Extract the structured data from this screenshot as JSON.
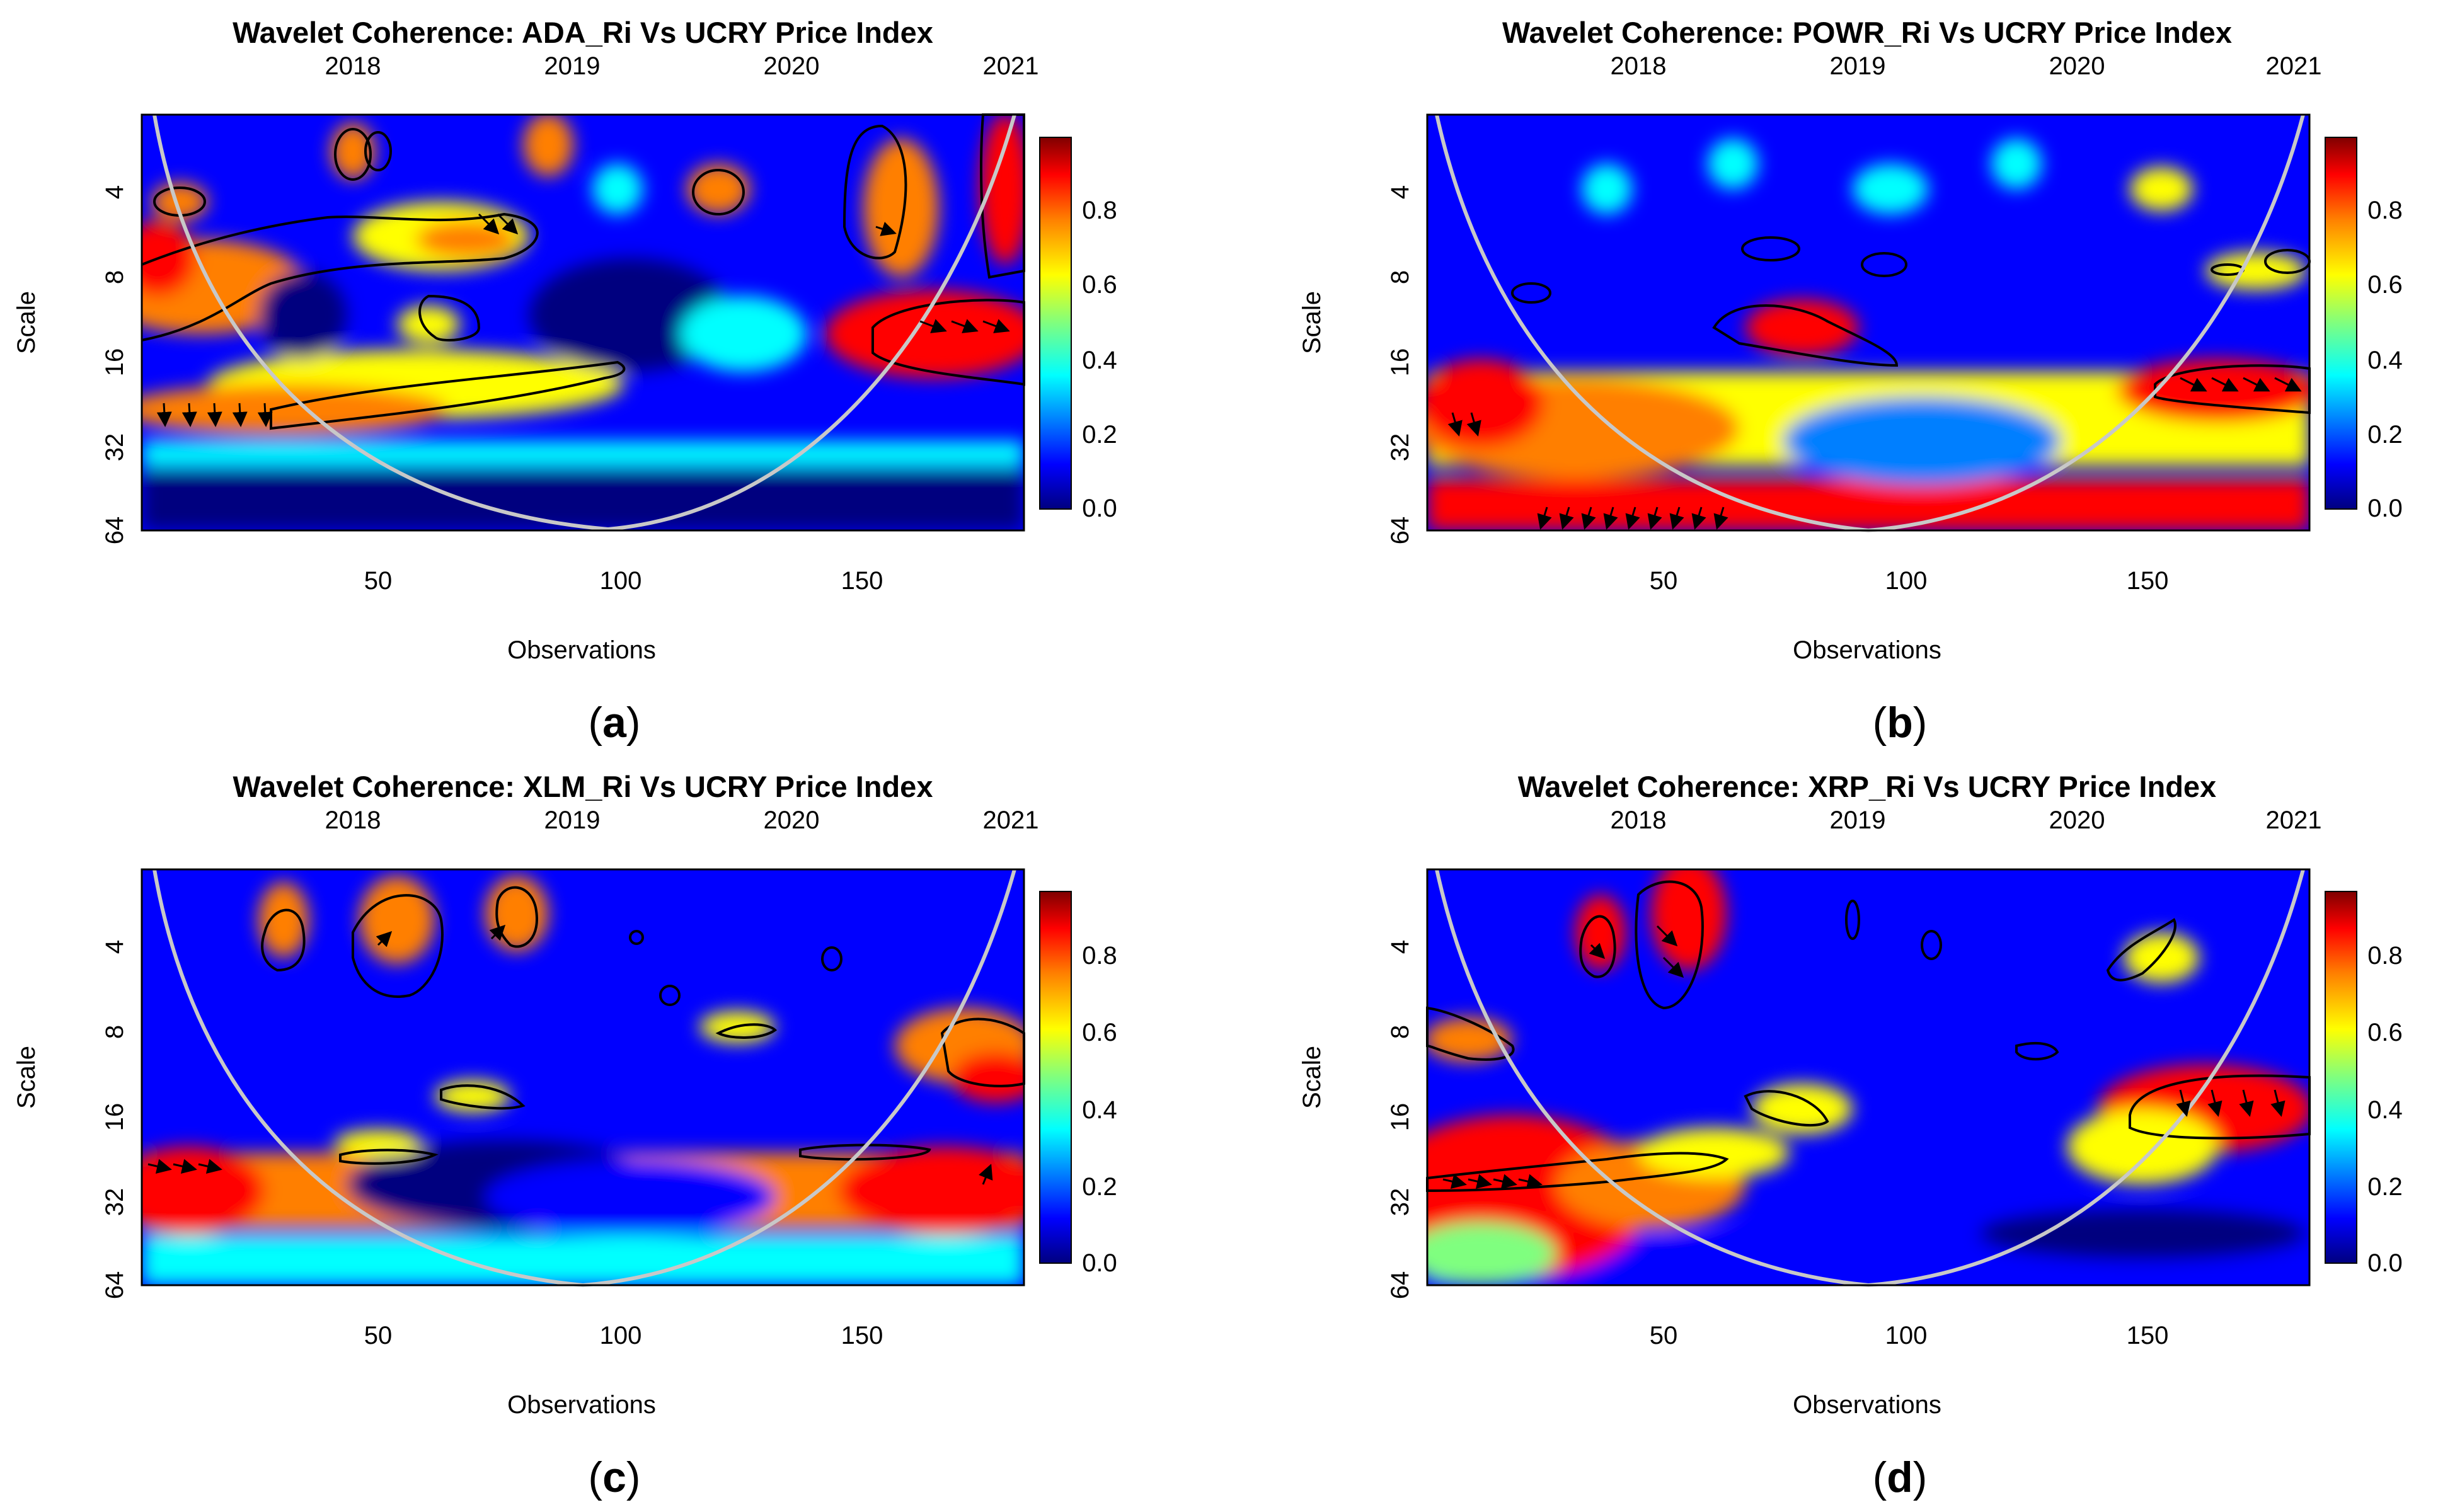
{
  "figure": {
    "panels": [
      {
        "title": "Wavelet Coherence: ADA_Ri Vs UCRY Price Index",
        "caption_letter": "a",
        "xlabel": "Observations",
        "ylabel": "Scale",
        "top_ticks": [
          "2018",
          "2019",
          "2020",
          "2021"
        ],
        "x_ticks": [
          "50",
          "100",
          "150"
        ],
        "y_ticks": [
          "4",
          "8",
          "16",
          "32",
          "64"
        ],
        "colorbar_ticks": [
          "0.0",
          "0.2",
          "0.4",
          "0.6",
          "0.8"
        ]
      },
      {
        "title": "Wavelet Coherence: POWR_Ri Vs UCRY Price Index",
        "caption_letter": "b",
        "xlabel": "Observations",
        "ylabel": "Scale",
        "top_ticks": [
          "2018",
          "2019",
          "2020",
          "2021"
        ],
        "x_ticks": [
          "50",
          "100",
          "150"
        ],
        "y_ticks": [
          "4",
          "8",
          "16",
          "32",
          "64"
        ],
        "colorbar_ticks": [
          "0.0",
          "0.2",
          "0.4",
          "0.6",
          "0.8"
        ]
      },
      {
        "title": "Wavelet Coherence: XLM_Ri Vs UCRY Price Index",
        "caption_letter": "c",
        "xlabel": "Observations",
        "ylabel": "Scale",
        "top_ticks": [
          "2018",
          "2019",
          "2020",
          "2021"
        ],
        "x_ticks": [
          "50",
          "100",
          "150"
        ],
        "y_ticks": [
          "4",
          "8",
          "16",
          "32",
          "64"
        ],
        "colorbar_ticks": [
          "0.0",
          "0.2",
          "0.4",
          "0.6",
          "0.8"
        ]
      },
      {
        "title": "Wavelet Coherence: XRP_Ri Vs UCRY Price Index",
        "caption_letter": "d",
        "xlabel": "Observations",
        "ylabel": "Scale",
        "top_ticks": [
          "2018",
          "2019",
          "2020",
          "2021"
        ],
        "x_ticks": [
          "50",
          "100",
          "150"
        ],
        "y_ticks": [
          "4",
          "8",
          "16",
          "32",
          "64"
        ],
        "colorbar_ticks": [
          "0.0",
          "0.2",
          "0.4",
          "0.6",
          "0.8"
        ]
      }
    ]
  },
  "chart_data": [
    {
      "type": "heatmap",
      "title": "Wavelet Coherence: ADA_Ri Vs UCRY Price Index",
      "xlabel": "Observations",
      "ylabel": "Scale",
      "xlim": [
        1,
        184
      ],
      "ylim": [
        2,
        64
      ],
      "y_scale": "log2",
      "colorbar_range": [
        0,
        1
      ],
      "colorscale": [
        "#00007f",
        "#0000ff",
        "#007fff",
        "#00ffff",
        "#7fff7f",
        "#ffff00",
        "#ff7f00",
        "#ff0000",
        "#7f0000"
      ],
      "cone_of_influence": true,
      "significant_regions": [
        {
          "x": [
            1,
            48
          ],
          "scale": [
            7,
            13
          ],
          "coherence": 0.9
        },
        {
          "x": [
            60,
            85
          ],
          "scale": [
            5.5,
            7.5
          ],
          "coherence": 0.9
        },
        {
          "x": [
            30,
            100
          ],
          "scale": [
            17,
            30
          ],
          "coherence": 0.85
        },
        {
          "x": [
            145,
            184
          ],
          "scale": [
            10,
            16
          ],
          "coherence": 0.95
        },
        {
          "x": [
            148,
            160
          ],
          "scale": [
            2,
            7
          ],
          "coherence": 0.9
        },
        {
          "x": [
            175,
            184
          ],
          "scale": [
            2,
            8
          ],
          "coherence": 0.95
        }
      ]
    },
    {
      "type": "heatmap",
      "title": "Wavelet Coherence: POWR_Ri Vs UCRY Price Index",
      "xlabel": "Observations",
      "ylabel": "Scale",
      "xlim": [
        1,
        184
      ],
      "ylim": [
        2,
        64
      ],
      "y_scale": "log2",
      "colorbar_range": [
        0,
        1
      ],
      "colorscale": [
        "#00007f",
        "#0000ff",
        "#007fff",
        "#00ffff",
        "#7fff7f",
        "#ffff00",
        "#ff7f00",
        "#ff0000",
        "#7f0000"
      ],
      "cone_of_influence": true,
      "significant_regions": [
        {
          "x": [
            60,
            95
          ],
          "scale": [
            12,
            16
          ],
          "coherence": 0.9
        },
        {
          "x": [
            150,
            184
          ],
          "scale": [
            20,
            26
          ],
          "coherence": 0.95
        },
        {
          "x": [
            1,
            184
          ],
          "scale": [
            40,
            64
          ],
          "coherence": 0.9
        }
      ]
    },
    {
      "type": "heatmap",
      "title": "Wavelet Coherence: XLM_Ri Vs UCRY Price Index",
      "xlabel": "Observations",
      "ylabel": "Scale",
      "xlim": [
        1,
        184
      ],
      "ylim": [
        2,
        64
      ],
      "y_scale": "log2",
      "colorbar_range": [
        0,
        1
      ],
      "colorscale": [
        "#00007f",
        "#0000ff",
        "#007fff",
        "#00ffff",
        "#7fff7f",
        "#ffff00",
        "#ff7f00",
        "#ff0000",
        "#7f0000"
      ],
      "cone_of_influence": true,
      "significant_regions": [
        {
          "x": [
            1,
            10
          ],
          "scale": [
            26,
            30
          ],
          "coherence": 0.9
        },
        {
          "x": [
            165,
            184
          ],
          "scale": [
            9,
            12
          ],
          "coherence": 0.9
        },
        {
          "x": [
            135,
            160
          ],
          "scale": [
            24,
            27
          ],
          "coherence": 0.85
        }
      ]
    },
    {
      "type": "heatmap",
      "title": "Wavelet Coherence: XRP_Ri Vs UCRY Price Index",
      "xlabel": "Observations",
      "ylabel": "Scale",
      "xlim": [
        1,
        184
      ],
      "ylim": [
        2,
        64
      ],
      "y_scale": "log2",
      "colorbar_range": [
        0,
        1
      ],
      "colorscale": [
        "#00007f",
        "#0000ff",
        "#007fff",
        "#00ffff",
        "#7fff7f",
        "#ffff00",
        "#ff7f00",
        "#ff0000",
        "#7f0000"
      ],
      "cone_of_influence": true,
      "significant_regions": [
        {
          "x": [
            1,
            60
          ],
          "scale": [
            27,
            31
          ],
          "coherence": 0.9
        },
        {
          "x": [
            148,
            184
          ],
          "scale": [
            10,
            17
          ],
          "coherence": 0.95
        },
        {
          "x": [
            42,
            58
          ],
          "scale": [
            2,
            6
          ],
          "coherence": 0.9
        },
        {
          "x": [
            1,
            22
          ],
          "scale": [
            7,
            10
          ],
          "coherence": 0.85
        }
      ]
    }
  ]
}
